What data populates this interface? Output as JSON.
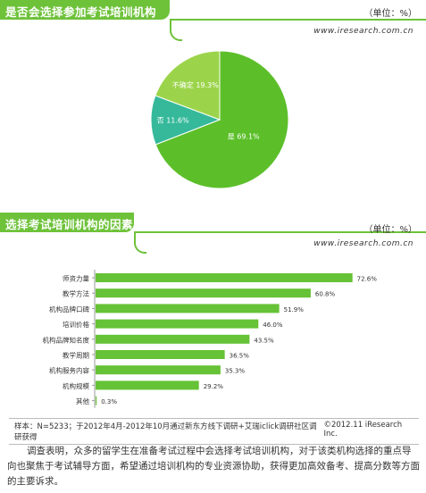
{
  "panel1": {
    "title": "是否会选择参加考试培训机构",
    "unit": "（单位：%）",
    "site": "www.iresearch.com.cn"
  },
  "panel2": {
    "title": "选择考试培训机构的因素",
    "unit": "（单位：%）",
    "site": "www.iresearch.com.cn",
    "footer_left": "样本：N=5233；于2012年4月-2012年10月通过新东方线下调研+艾瑞iclick调研社区调研获得",
    "footer_right": "©2012.11 iResearch Inc."
  },
  "paragraph": "调查表明，众多的留学生在准备考试过程中会选择考试培训机构，对于该类机构选择的重点导向也聚焦于考试辅导方面，希望通过培训机构的专业资源协助，获得更加高效备考、提高分数等方面的主要诉求。",
  "colors": {
    "green": "#6ec23a",
    "yes": "#5cbf2a",
    "no": "#35b99a",
    "unsure": "#9bd44a",
    "bar": "#66c236"
  },
  "chart_data": [
    {
      "type": "pie",
      "title": "是否会选择参加考试培训机构",
      "categories": [
        "是",
        "否",
        "不确定"
      ],
      "values": [
        69.1,
        11.6,
        19.3
      ],
      "labels": [
        "是 69.1%",
        "否 11.6%",
        "不确定 19.3%"
      ]
    },
    {
      "type": "bar",
      "orientation": "horizontal",
      "title": "选择考试培训机构的因素",
      "categories": [
        "师资力量",
        "教学方法",
        "机构品牌口碑",
        "培训价格",
        "机构品牌知名度",
        "教学周期",
        "机构服务内容",
        "机构规模",
        "其他"
      ],
      "values": [
        72.6,
        60.8,
        51.9,
        46.0,
        43.5,
        36.5,
        35.3,
        29.2,
        0.3
      ],
      "value_labels": [
        "72.6%",
        "60.8%",
        "51.9%",
        "46.0%",
        "43.5%",
        "36.5%",
        "35.3%",
        "29.2%",
        "0.3%"
      ]
    }
  ]
}
